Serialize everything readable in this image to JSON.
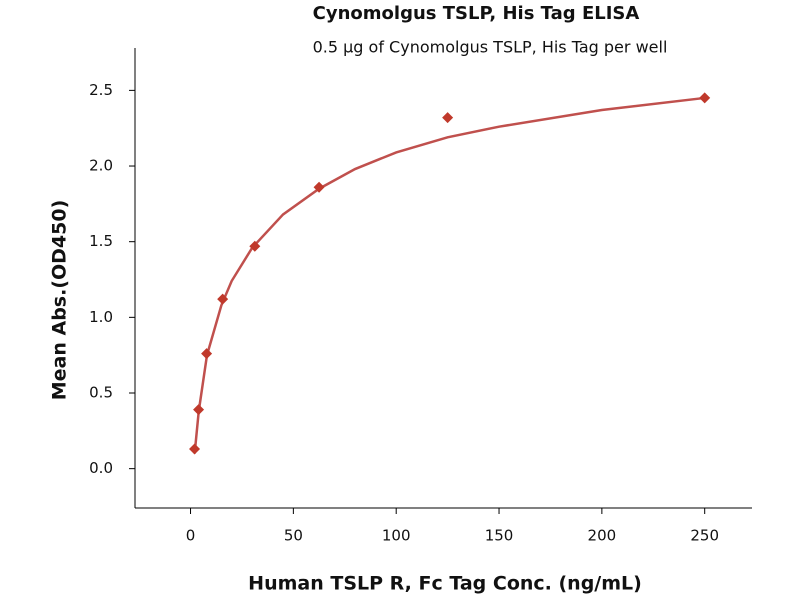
{
  "chart_data": {
    "type": "scatter",
    "title": "Cynomolgus TSLP, His Tag ELISA",
    "subtitle": "0.5 μg of Cynomolgus TSLP, His Tag per well",
    "x_label": "Human TSLP R, Fc Tag Conc. (ng/mL)",
    "y_label": "Mean Abs.(OD450)",
    "series": [
      {
        "mode": "markers",
        "color": "#c0392b",
        "x": [
          1.953,
          3.906,
          7.8125,
          15.625,
          31.25,
          62.5,
          125,
          250
        ],
        "values": [
          0.13,
          0.39,
          0.76,
          1.12,
          1.47,
          1.86,
          2.32,
          2.45
        ]
      },
      {
        "mode": "line",
        "color": "#c0504d",
        "x": [
          2,
          4,
          8,
          15,
          20,
          30,
          45,
          62.5,
          80,
          100,
          125,
          150,
          200,
          250
        ],
        "values": [
          0.1,
          0.38,
          0.75,
          1.08,
          1.24,
          1.46,
          1.68,
          1.85,
          1.98,
          2.09,
          2.19,
          2.26,
          2.37,
          2.45
        ]
      }
    ],
    "xlim": [
      -27,
      273
    ],
    "ylim": [
      -0.26,
      2.78
    ],
    "xticks": [
      0,
      50,
      100,
      150,
      200,
      250
    ],
    "yticks": [
      {
        "value": 0,
        "label": "0.0"
      },
      0.5,
      {
        "value": 1,
        "label": "1.0"
      },
      1.5,
      {
        "value": 2,
        "label": "2.0"
      },
      2.5
    ]
  }
}
